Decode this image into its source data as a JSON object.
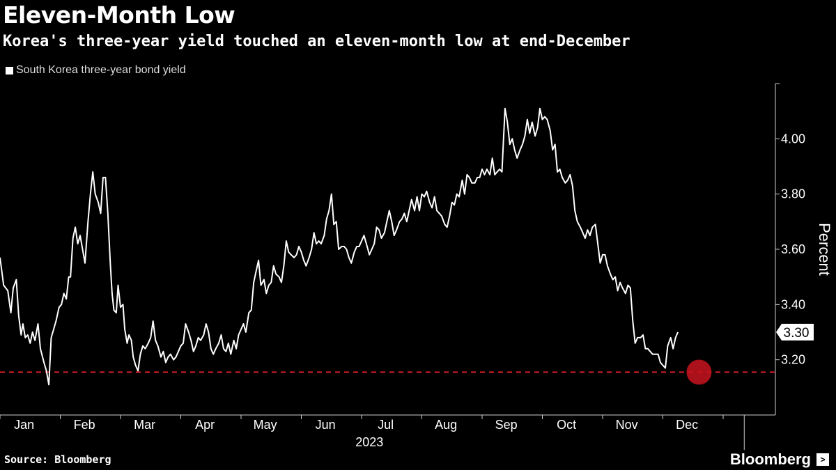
{
  "header": {
    "title": "Eleven-Month Low",
    "subtitle": "Korea's three-year yield touched an eleven-month low at end-December"
  },
  "footer": {
    "source": "Source: Bloomberg",
    "brand": "Bloomberg",
    "brand_icon": "terminal-icon"
  },
  "colors": {
    "background": "#000000",
    "line": "#ffffff",
    "reference": "#e0202a",
    "highlight": "#c8141e"
  },
  "chart_data": {
    "type": "line",
    "title": "Eleven-Month Low",
    "subtitle": "Korea's three-year yield touched an eleven-month low at end-December",
    "ylabel": "Percent",
    "xlabel": "2023",
    "ylim": [
      3.0,
      4.2
    ],
    "yticks": [
      3.2,
      3.4,
      3.6,
      3.8,
      4.0
    ],
    "ytick_labels": [
      "3.20",
      "3.40",
      "3.60",
      "3.80",
      "4.00"
    ],
    "x_months": [
      "Jan",
      "Feb",
      "Mar",
      "Apr",
      "May",
      "Jun",
      "Jul",
      "Aug",
      "Sep",
      "Oct",
      "Nov",
      "Dec"
    ],
    "year_label": "2023",
    "legend": [
      {
        "name": "South Korea three-year bond yield",
        "color": "#ffffff"
      }
    ],
    "last_value": 3.3,
    "last_value_label": "3.30",
    "reference_line": {
      "value": 3.155,
      "style": "dashed"
    },
    "highlight_point": {
      "x": 11.6,
      "y": 3.155
    },
    "series": [
      {
        "name": "South Korea three-year bond yield",
        "points": [
          [
            0.0,
            3.57
          ],
          [
            0.06,
            3.47
          ],
          [
            0.13,
            3.45
          ],
          [
            0.18,
            3.37
          ],
          [
            0.22,
            3.46
          ],
          [
            0.27,
            3.49
          ],
          [
            0.31,
            3.36
          ],
          [
            0.35,
            3.29
          ],
          [
            0.38,
            3.33
          ],
          [
            0.42,
            3.28
          ],
          [
            0.46,
            3.29
          ],
          [
            0.5,
            3.26
          ],
          [
            0.54,
            3.3
          ],
          [
            0.58,
            3.27
          ],
          [
            0.63,
            3.33
          ],
          [
            0.67,
            3.24
          ],
          [
            0.73,
            3.19
          ],
          [
            0.77,
            3.16
          ],
          [
            0.81,
            3.11
          ],
          [
            0.85,
            3.28
          ],
          [
            0.89,
            3.31
          ],
          [
            0.93,
            3.34
          ],
          [
            0.98,
            3.39
          ],
          [
            1.02,
            3.4
          ],
          [
            1.06,
            3.44
          ],
          [
            1.1,
            3.42
          ],
          [
            1.14,
            3.5
          ],
          [
            1.17,
            3.5
          ],
          [
            1.21,
            3.64
          ],
          [
            1.25,
            3.68
          ],
          [
            1.29,
            3.62
          ],
          [
            1.33,
            3.65
          ],
          [
            1.37,
            3.6
          ],
          [
            1.41,
            3.55
          ],
          [
            1.46,
            3.7
          ],
          [
            1.5,
            3.8
          ],
          [
            1.54,
            3.88
          ],
          [
            1.58,
            3.8
          ],
          [
            1.63,
            3.77
          ],
          [
            1.67,
            3.73
          ],
          [
            1.71,
            3.86
          ],
          [
            1.75,
            3.86
          ],
          [
            1.79,
            3.73
          ],
          [
            1.83,
            3.55
          ],
          [
            1.86,
            3.44
          ],
          [
            1.89,
            3.38
          ],
          [
            1.93,
            3.37
          ],
          [
            1.96,
            3.47
          ],
          [
            2.0,
            3.39
          ],
          [
            2.04,
            3.4
          ],
          [
            2.07,
            3.31
          ],
          [
            2.11,
            3.26
          ],
          [
            2.14,
            3.29
          ],
          [
            2.18,
            3.27
          ],
          [
            2.21,
            3.21
          ],
          [
            2.25,
            3.18
          ],
          [
            2.29,
            3.16
          ],
          [
            2.33,
            3.22
          ],
          [
            2.37,
            3.25
          ],
          [
            2.41,
            3.24
          ],
          [
            2.46,
            3.26
          ],
          [
            2.5,
            3.28
          ],
          [
            2.54,
            3.34
          ],
          [
            2.58,
            3.27
          ],
          [
            2.62,
            3.25
          ],
          [
            2.67,
            3.21
          ],
          [
            2.71,
            3.23
          ],
          [
            2.75,
            3.19
          ],
          [
            2.79,
            3.21
          ],
          [
            2.83,
            3.22
          ],
          [
            2.88,
            3.2
          ],
          [
            2.92,
            3.21
          ],
          [
            2.96,
            3.23
          ],
          [
            3.0,
            3.25
          ],
          [
            3.04,
            3.26
          ],
          [
            3.08,
            3.33
          ],
          [
            3.13,
            3.3
          ],
          [
            3.17,
            3.27
          ],
          [
            3.21,
            3.23
          ],
          [
            3.25,
            3.25
          ],
          [
            3.29,
            3.28
          ],
          [
            3.33,
            3.27
          ],
          [
            3.38,
            3.29
          ],
          [
            3.42,
            3.33
          ],
          [
            3.46,
            3.3
          ],
          [
            3.5,
            3.24
          ],
          [
            3.54,
            3.22
          ],
          [
            3.58,
            3.24
          ],
          [
            3.63,
            3.26
          ],
          [
            3.67,
            3.29
          ],
          [
            3.71,
            3.24
          ],
          [
            3.75,
            3.23
          ],
          [
            3.79,
            3.26
          ],
          [
            3.83,
            3.22
          ],
          [
            3.88,
            3.27
          ],
          [
            3.92,
            3.24
          ],
          [
            3.96,
            3.29
          ],
          [
            4.0,
            3.31
          ],
          [
            4.04,
            3.33
          ],
          [
            4.08,
            3.3
          ],
          [
            4.13,
            3.37
          ],
          [
            4.17,
            3.38
          ],
          [
            4.21,
            3.48
          ],
          [
            4.25,
            3.52
          ],
          [
            4.29,
            3.56
          ],
          [
            4.33,
            3.47
          ],
          [
            4.38,
            3.49
          ],
          [
            4.42,
            3.44
          ],
          [
            4.46,
            3.47
          ],
          [
            4.5,
            3.48
          ],
          [
            4.54,
            3.54
          ],
          [
            4.58,
            3.51
          ],
          [
            4.63,
            3.5
          ],
          [
            4.67,
            3.48
          ],
          [
            4.71,
            3.54
          ],
          [
            4.75,
            3.63
          ],
          [
            4.79,
            3.59
          ],
          [
            4.83,
            3.58
          ],
          [
            4.88,
            3.57
          ],
          [
            4.92,
            3.58
          ],
          [
            4.96,
            3.61
          ],
          [
            5.0,
            3.59
          ],
          [
            5.04,
            3.56
          ],
          [
            5.08,
            3.54
          ],
          [
            5.13,
            3.57
          ],
          [
            5.17,
            3.6
          ],
          [
            5.21,
            3.66
          ],
          [
            5.25,
            3.62
          ],
          [
            5.29,
            3.63
          ],
          [
            5.33,
            3.62
          ],
          [
            5.38,
            3.65
          ],
          [
            5.42,
            3.71
          ],
          [
            5.46,
            3.74
          ],
          [
            5.5,
            3.8
          ],
          [
            5.54,
            3.69
          ],
          [
            5.58,
            3.7
          ],
          [
            5.62,
            3.6
          ],
          [
            5.67,
            3.61
          ],
          [
            5.71,
            3.61
          ],
          [
            5.75,
            3.6
          ],
          [
            5.79,
            3.57
          ],
          [
            5.83,
            3.55
          ],
          [
            5.88,
            3.59
          ],
          [
            5.92,
            3.61
          ],
          [
            5.96,
            3.61
          ],
          [
            6.0,
            3.63
          ],
          [
            6.04,
            3.65
          ],
          [
            6.08,
            3.62
          ],
          [
            6.13,
            3.58
          ],
          [
            6.17,
            3.6
          ],
          [
            6.21,
            3.62
          ],
          [
            6.25,
            3.68
          ],
          [
            6.29,
            3.67
          ],
          [
            6.33,
            3.64
          ],
          [
            6.38,
            3.66
          ],
          [
            6.42,
            3.7
          ],
          [
            6.46,
            3.74
          ],
          [
            6.5,
            3.7
          ],
          [
            6.54,
            3.65
          ],
          [
            6.58,
            3.67
          ],
          [
            6.63,
            3.7
          ],
          [
            6.67,
            3.71
          ],
          [
            6.71,
            3.73
          ],
          [
            6.75,
            3.7
          ],
          [
            6.79,
            3.74
          ],
          [
            6.83,
            3.78
          ],
          [
            6.88,
            3.74
          ],
          [
            6.92,
            3.79
          ],
          [
            6.96,
            3.74
          ],
          [
            7.0,
            3.8
          ],
          [
            7.04,
            3.79
          ],
          [
            7.08,
            3.81
          ],
          [
            7.13,
            3.77
          ],
          [
            7.17,
            3.75
          ],
          [
            7.21,
            3.79
          ],
          [
            7.25,
            3.74
          ],
          [
            7.29,
            3.73
          ],
          [
            7.33,
            3.72
          ],
          [
            7.38,
            3.69
          ],
          [
            7.42,
            3.68
          ],
          [
            7.46,
            3.72
          ],
          [
            7.5,
            3.77
          ],
          [
            7.54,
            3.76
          ],
          [
            7.58,
            3.8
          ],
          [
            7.62,
            3.79
          ],
          [
            7.67,
            3.85
          ],
          [
            7.71,
            3.8
          ],
          [
            7.75,
            3.87
          ],
          [
            7.79,
            3.86
          ],
          [
            7.83,
            3.84
          ],
          [
            7.88,
            3.84
          ],
          [
            7.92,
            3.86
          ],
          [
            7.96,
            3.86
          ],
          [
            8.0,
            3.89
          ],
          [
            8.04,
            3.87
          ],
          [
            8.08,
            3.89
          ],
          [
            8.13,
            3.87
          ],
          [
            8.17,
            3.93
          ],
          [
            8.21,
            3.87
          ],
          [
            8.25,
            3.88
          ],
          [
            8.29,
            3.89
          ],
          [
            8.33,
            3.88
          ],
          [
            8.38,
            4.11
          ],
          [
            8.42,
            4.06
          ],
          [
            8.46,
            3.98
          ],
          [
            8.5,
            4.0
          ],
          [
            8.54,
            3.96
          ],
          [
            8.58,
            3.93
          ],
          [
            8.63,
            3.96
          ],
          [
            8.67,
            3.98
          ],
          [
            8.71,
            4.01
          ],
          [
            8.75,
            4.07
          ],
          [
            8.79,
            4.02
          ],
          [
            8.83,
            4.06
          ],
          [
            8.88,
            4.01
          ],
          [
            8.92,
            4.04
          ],
          [
            8.96,
            4.11
          ],
          [
            9.0,
            4.07
          ],
          [
            9.04,
            4.08
          ],
          [
            9.08,
            4.07
          ],
          [
            9.13,
            4.03
          ],
          [
            9.17,
            3.96
          ],
          [
            9.21,
            3.98
          ],
          [
            9.25,
            3.88
          ],
          [
            9.29,
            3.89
          ],
          [
            9.33,
            3.86
          ],
          [
            9.38,
            3.84
          ],
          [
            9.42,
            3.85
          ],
          [
            9.46,
            3.87
          ],
          [
            9.5,
            3.83
          ],
          [
            9.54,
            3.74
          ],
          [
            9.58,
            3.7
          ],
          [
            9.63,
            3.68
          ],
          [
            9.67,
            3.66
          ],
          [
            9.71,
            3.64
          ],
          [
            9.75,
            3.67
          ],
          [
            9.79,
            3.65
          ],
          [
            9.83,
            3.68
          ],
          [
            9.88,
            3.69
          ],
          [
            9.92,
            3.62
          ],
          [
            9.96,
            3.55
          ],
          [
            10.0,
            3.58
          ],
          [
            10.04,
            3.58
          ],
          [
            10.08,
            3.54
          ],
          [
            10.13,
            3.51
          ],
          [
            10.17,
            3.49
          ],
          [
            10.21,
            3.5
          ],
          [
            10.25,
            3.45
          ],
          [
            10.29,
            3.48
          ],
          [
            10.33,
            3.46
          ],
          [
            10.38,
            3.44
          ],
          [
            10.42,
            3.47
          ],
          [
            10.46,
            3.46
          ],
          [
            10.5,
            3.34
          ],
          [
            10.54,
            3.26
          ],
          [
            10.58,
            3.28
          ],
          [
            10.63,
            3.28
          ],
          [
            10.67,
            3.29
          ],
          [
            10.71,
            3.24
          ],
          [
            10.75,
            3.24
          ],
          [
            10.79,
            3.23
          ],
          [
            10.83,
            3.22
          ],
          [
            10.88,
            3.22
          ],
          [
            10.92,
            3.22
          ],
          [
            10.96,
            3.19
          ],
          [
            11.0,
            3.18
          ],
          [
            11.04,
            3.17
          ],
          [
            11.08,
            3.25
          ],
          [
            11.13,
            3.28
          ],
          [
            11.17,
            3.24
          ],
          [
            11.21,
            3.28
          ],
          [
            11.25,
            3.3
          ]
        ]
      }
    ]
  }
}
